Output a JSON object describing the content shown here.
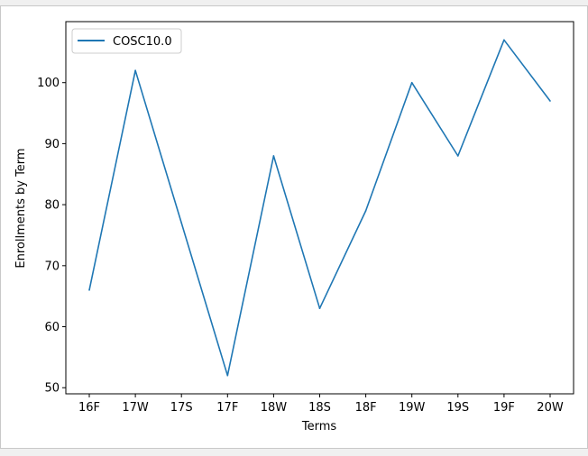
{
  "chart_data": {
    "type": "line",
    "categories": [
      "16F",
      "17W",
      "17S",
      "17F",
      "18W",
      "18S",
      "18F",
      "19W",
      "19S",
      "19F",
      "20W"
    ],
    "series": [
      {
        "name": "COSC10.0",
        "values": [
          66,
          102,
          77,
          52,
          88,
          63,
          79,
          100,
          88,
          107,
          97
        ],
        "color": "#1f77b4"
      }
    ],
    "xlabel": "Terms",
    "ylabel": "Enrollments by Term",
    "ylim": [
      49,
      110
    ],
    "yticks": [
      50,
      60,
      70,
      80,
      90,
      100
    ],
    "grid": false,
    "legend_position": "top-left"
  }
}
